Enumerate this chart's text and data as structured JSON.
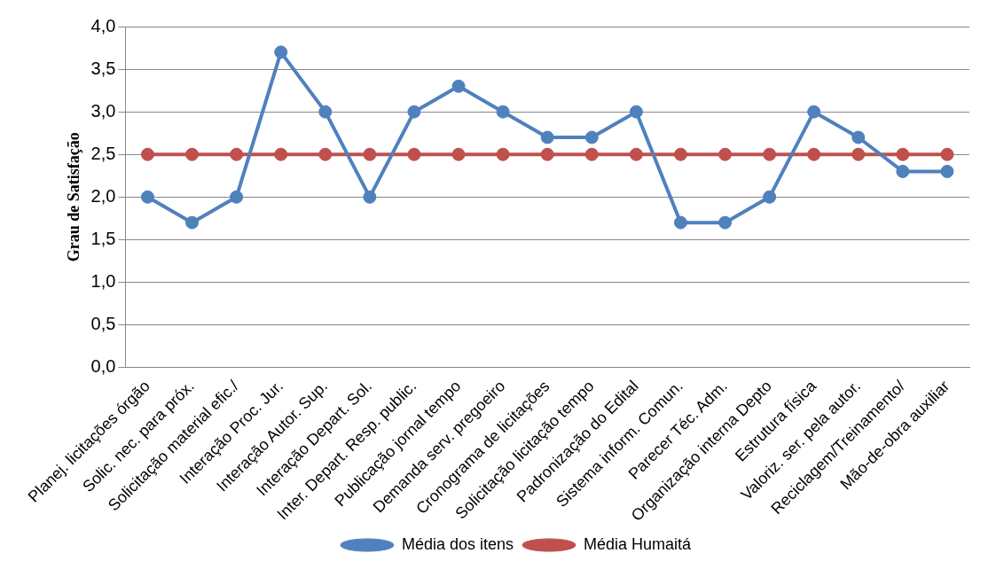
{
  "chart_data": {
    "type": "line",
    "ylabel": "Grau de Satisfação",
    "categories": [
      "Planej. licitações órgão",
      "Solic. nec. para próx.",
      "Solicitação material efic./",
      "Interação Proc. Jur.",
      "Interação Autor. Sup.",
      "Interação Depart. Sol.",
      "Inter. Depart. Resp. public.",
      "Publicação jornal tempo",
      "Demanda serv. pregoeiro",
      "Cronograma de licitações",
      "Solicitação licitação tempo",
      "Padronização do Edital",
      "Sistema inform. Comun.",
      "Parecer Téc. Adm.",
      "Organização interna Depto",
      "Estrutura física",
      "Valoriz. ser. pela autor.",
      "Reciclagem/Treinamento/",
      "Mão-de-obra auxiliar"
    ],
    "series": [
      {
        "name": "Média dos itens",
        "color": "#4f81bd",
        "values": [
          2.0,
          1.7,
          2.0,
          3.7,
          3.0,
          2.0,
          3.0,
          3.3,
          3.0,
          2.7,
          2.7,
          3.0,
          1.7,
          1.7,
          2.0,
          3.0,
          2.7,
          2.3,
          2.3
        ]
      },
      {
        "name": "Média Humaitá",
        "color": "#c0504d",
        "values": [
          2.5,
          2.5,
          2.5,
          2.5,
          2.5,
          2.5,
          2.5,
          2.5,
          2.5,
          2.5,
          2.5,
          2.5,
          2.5,
          2.5,
          2.5,
          2.5,
          2.5,
          2.5,
          2.5
        ]
      }
    ],
    "ylim": [
      0,
      4
    ],
    "yticks": [
      {
        "value": 0,
        "label": "0,0"
      },
      {
        "value": 0.5,
        "label": "0,5"
      },
      {
        "value": 1,
        "label": "1,0"
      },
      {
        "value": 1.5,
        "label": "1,5"
      },
      {
        "value": 2,
        "label": "2,0"
      },
      {
        "value": 2.5,
        "label": "2,5"
      },
      {
        "value": 3,
        "label": "3,0"
      },
      {
        "value": 3.5,
        "label": "3,5"
      },
      {
        "value": 4,
        "label": "4,0"
      }
    ],
    "grid": "y",
    "legend": "bottom",
    "marker": "circle",
    "line_style": "solid"
  }
}
